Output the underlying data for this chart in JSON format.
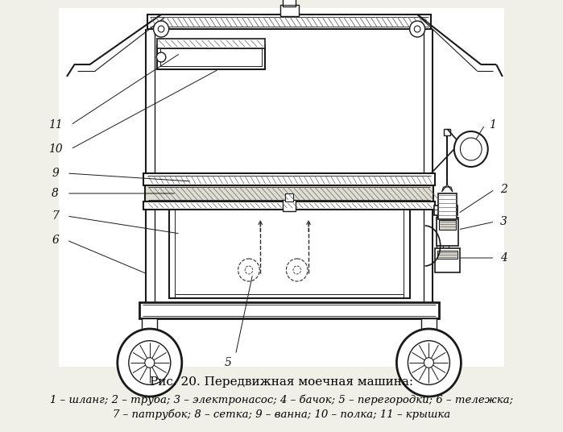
{
  "bg": "#f0efe8",
  "lc": "#1a1a1a",
  "dc": "#2a2a2a",
  "hatch_c": "#666666",
  "caption_title": "Рис. 20. Передвижная моечная машина:",
  "caption_line1": "1 – шланг; 2 – труба; 3 – электронасос; 4 – бачок; 5 – перегородки; 6 – тележка;",
  "caption_line2": "7 – патрубок; 8 – сетка; 9 – ванна; 10 – полка; 11 – крышка",
  "fig_w": 6.99,
  "fig_h": 5.36,
  "dpi": 100
}
